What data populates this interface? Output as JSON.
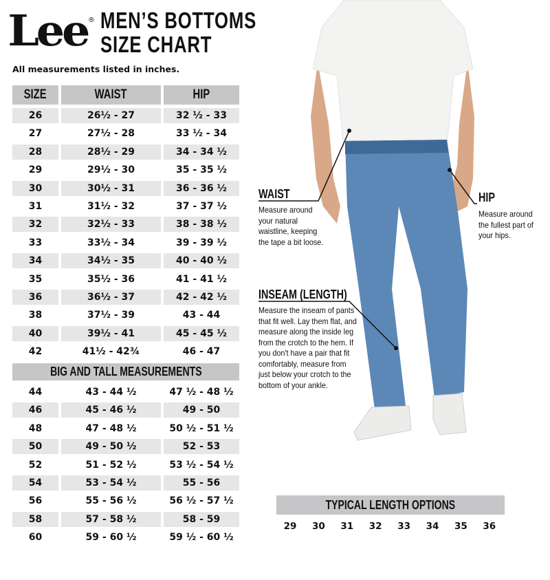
{
  "brand": {
    "logo": "Lee",
    "registered": "®"
  },
  "title": {
    "line1": "MEN’S BOTTOMS",
    "line2": "SIZE CHART"
  },
  "note": "All measurements listed in inches.",
  "table": {
    "headers": [
      "SIZE",
      "WAIST",
      "HIP"
    ],
    "rows": [
      [
        "26",
        "26½ - 27",
        "32 ½ - 33"
      ],
      [
        "27",
        "27½ - 28",
        "33 ½ - 34"
      ],
      [
        "28",
        "28½ - 29",
        "34 - 34 ½"
      ],
      [
        "29",
        "29½ - 30",
        "35 - 35 ½"
      ],
      [
        "30",
        "30½ - 31",
        "36 - 36 ½"
      ],
      [
        "31",
        "31½ - 32",
        "37 - 37 ½"
      ],
      [
        "32",
        "32½ - 33",
        "38 - 38 ½"
      ],
      [
        "33",
        "33½ - 34",
        "39 - 39 ½"
      ],
      [
        "34",
        "34½ - 35",
        "40 - 40 ½"
      ],
      [
        "35",
        "35½ - 36",
        "41 - 41 ½"
      ],
      [
        "36",
        "36½ - 37",
        "42 - 42 ½"
      ],
      [
        "38",
        "37½ - 39",
        "43 - 44"
      ],
      [
        "40",
        "39½ - 41",
        "45 - 45 ½"
      ],
      [
        "42",
        "41½ - 42¾",
        "46 - 47"
      ]
    ],
    "big_tall_title": "BIG AND TALL MEASUREMENTS",
    "big_tall_rows": [
      [
        "44",
        "43 - 44 ½",
        "47 ½ - 48 ½"
      ],
      [
        "46",
        "45 - 46 ½",
        "49 - 50"
      ],
      [
        "48",
        "47 - 48 ½",
        "50 ½ - 51 ½"
      ],
      [
        "50",
        "49 - 50 ½",
        "52 - 53"
      ],
      [
        "52",
        "51 - 52 ½",
        "53 ½ - 54 ½"
      ],
      [
        "54",
        "53 - 54 ½",
        "55 - 56"
      ],
      [
        "56",
        "55 - 56 ½",
        "56 ½ - 57 ½"
      ],
      [
        "58",
        "57 - 58 ½",
        "58 - 59"
      ],
      [
        "60",
        "59 - 60 ½",
        "59 ½ - 60 ½"
      ]
    ]
  },
  "guides": {
    "waist": {
      "title": "WAIST",
      "text": "Measure around your natural waistline, keeping the tape a bit loose."
    },
    "hip": {
      "title": "HIP",
      "text": "Measure around the fullest part of your hips."
    },
    "inseam": {
      "title": "INSEAM (LENGTH)",
      "text": "Measure the inseam of pants that fit well. Lay them flat, and measure along the inside leg from the crotch to the hem. If you don't have a pair that fit comfortably, measure from just below your crotch to the bottom of your ankle."
    }
  },
  "lengths": {
    "title": "TYPICAL LENGTH OPTIONS",
    "values": [
      "29",
      "30",
      "31",
      "32",
      "33",
      "34",
      "35",
      "36"
    ]
  },
  "colors": {
    "header_gray": "#c6c6c8",
    "row_shade": "#e6e6e6",
    "denim": "#4f7fb0"
  }
}
